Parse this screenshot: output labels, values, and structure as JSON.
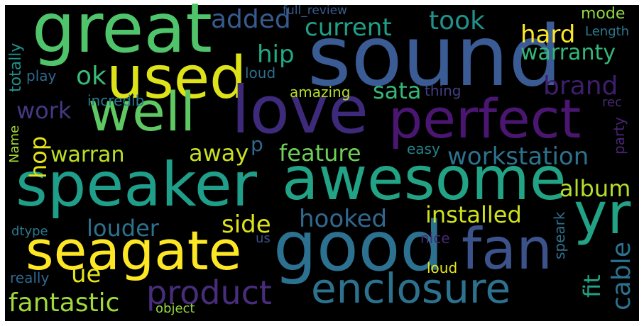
{
  "words": {
    "great": {
      "text": "great",
      "color": "#4fc46a"
    },
    "sound": {
      "text": "sound",
      "color": "#3b5b94"
    },
    "used": {
      "text": "used",
      "color": "#dde318"
    },
    "well": {
      "text": "well",
      "color": "#5ec962"
    },
    "love": {
      "text": "love",
      "color": "#3e2a7a"
    },
    "perfect": {
      "text": "perfect",
      "color": "#4a1672"
    },
    "speaker": {
      "text": "speaker",
      "color": "#1f9e89"
    },
    "awesome": {
      "text": "awesome",
      "color": "#22a385"
    },
    "yr": {
      "text": "yr",
      "color": "#22a385"
    },
    "seagate": {
      "text": "seagate",
      "color": "#fde725"
    },
    "good": {
      "text": "good",
      "color": "#2d7190"
    },
    "fan": {
      "text": "fan",
      "color": "#3b528b"
    },
    "enclosure": {
      "text": "enclosure",
      "color": "#2c728e"
    },
    "product": {
      "text": "product",
      "color": "#472d7b"
    },
    "fantastic": {
      "text": "fantastic",
      "color": "#9fda3a"
    },
    "added": {
      "text": "added",
      "color": "#375b8d"
    },
    "current": {
      "text": "current",
      "color": "#1fa088"
    },
    "took": {
      "text": "took",
      "color": "#20928c"
    },
    "hard": {
      "text": "hard",
      "color": "#fde725"
    },
    "mode": {
      "text": "mode",
      "color": "#90d743"
    },
    "length": {
      "text": "Length",
      "color": "#2a788e"
    },
    "full_review": {
      "text": "full_review",
      "color": "#375a8c"
    },
    "hip": {
      "text": "hip",
      "color": "#22a884"
    },
    "warranty": {
      "text": "warranty",
      "color": "#35b779"
    },
    "ok": {
      "text": "ok",
      "color": "#3aba76"
    },
    "sata": {
      "text": "sata",
      "color": "#35b779"
    },
    "brand": {
      "text": "brand",
      "color": "#3e1e6d"
    },
    "totally": {
      "text": "totally",
      "color": "#21908d"
    },
    "play": {
      "text": "play",
      "color": "#31688e"
    },
    "loud_1": {
      "text": "loud",
      "color": "#2e6e8e"
    },
    "amazing": {
      "text": "amazing",
      "color": "#b5de2b"
    },
    "thing": {
      "text": "thing",
      "color": "#433e85"
    },
    "incredib": {
      "text": "incredib",
      "color": "#2a788e"
    },
    "rec": {
      "text": "rec",
      "color": "#482878"
    },
    "work": {
      "text": "work",
      "color": "#443983"
    },
    "warran": {
      "text": "warran",
      "color": "#bddf26"
    },
    "away": {
      "text": "away",
      "color": "#c8e020"
    },
    "p": {
      "text": "p",
      "color": "#31688e"
    },
    "feature": {
      "text": "feature",
      "color": "#6ece58"
    },
    "easy": {
      "text": "easy",
      "color": "#25838e"
    },
    "workstation": {
      "text": "workstation",
      "color": "#2c728e"
    },
    "party": {
      "text": "party",
      "color": "#482475"
    },
    "name": {
      "text": "Name",
      "color": "#a5db36"
    },
    "hop": {
      "text": "hop",
      "color": "#e5e419"
    },
    "album": {
      "text": "album",
      "color": "#b5de2b"
    },
    "installed": {
      "text": "installed",
      "color": "#d0e11c"
    },
    "louder": {
      "text": "louder",
      "color": "#2c728e"
    },
    "hooked": {
      "text": "hooked",
      "color": "#31688e"
    },
    "side": {
      "text": "side",
      "color": "#dde318"
    },
    "us": {
      "text": "us",
      "color": "#3b528b"
    },
    "nice": {
      "text": "nice",
      "color": "#482878"
    },
    "dtype": {
      "text": "dtype",
      "color": "#2a788e"
    },
    "speark": {
      "text": "speark",
      "color": "#2c728e"
    },
    "fit": {
      "text": "fit",
      "color": "#20a386"
    },
    "cable": {
      "text": "cable",
      "color": "#2c728e"
    },
    "ue": {
      "text": "ue",
      "color": "#e5e419"
    },
    "loud_2": {
      "text": "loud",
      "color": "#e5e419"
    },
    "really": {
      "text": "really",
      "color": "#31688e"
    },
    "object": {
      "text": "object",
      "color": "#95d840"
    }
  },
  "colors": {
    "background": "#000000",
    "frame": "#ffffff"
  }
}
